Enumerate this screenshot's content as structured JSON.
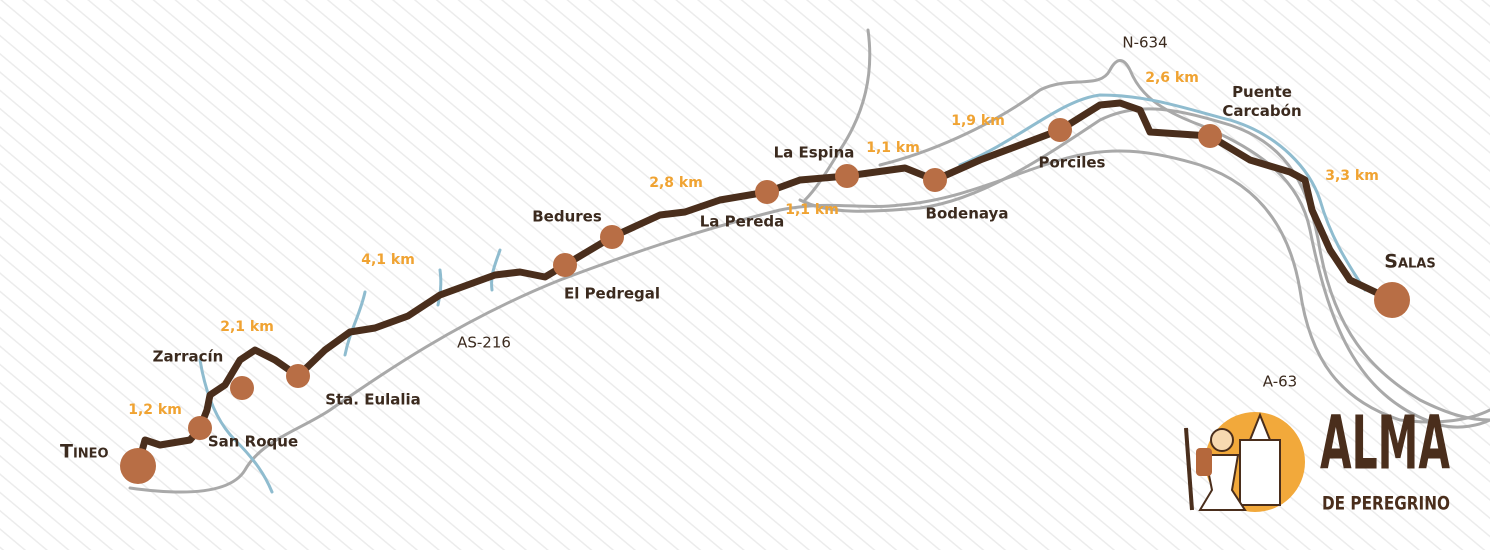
{
  "places": [
    {
      "name": "Tineo"
    },
    {
      "name": "San Roque"
    },
    {
      "name": "Zarracín"
    },
    {
      "name": "Sta. Eulalia"
    },
    {
      "name": "El Pedregal"
    },
    {
      "name": "Bedures"
    },
    {
      "name": "La Pereda"
    },
    {
      "name": "La Espina"
    },
    {
      "name": "Bodenaya"
    },
    {
      "name": "Porciles"
    },
    {
      "name": "Puente Carcabón"
    },
    {
      "name": "Salas"
    }
  ],
  "distances": [
    "1,2 km",
    "2,1 km",
    "4,1 km",
    "2,8 km",
    "1,1 km",
    "1,1 km",
    "1,9 km",
    "2,6 km",
    "3,3 km"
  ],
  "roads": [
    "N-634",
    "AS-216",
    "A-63"
  ],
  "logo": {
    "title": "ALMA",
    "subtitle": "DE PEREGRINO"
  }
}
